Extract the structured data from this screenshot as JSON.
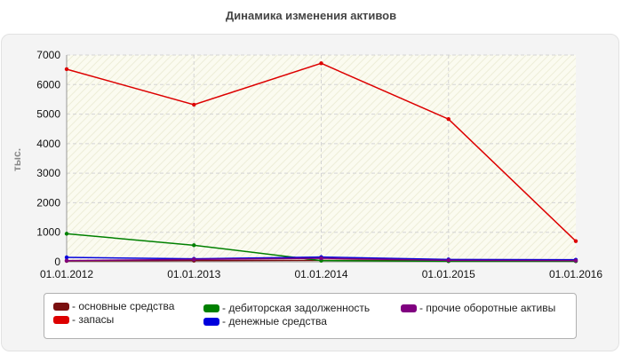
{
  "page": {
    "title": "Динамика изменения активов"
  },
  "chart_data": {
    "type": "line",
    "title": "Динамика изменения активов",
    "xlabel": "",
    "ylabel": "тыс.",
    "categories": [
      "01.01.2012",
      "01.01.2013",
      "01.01.2014",
      "01.01.2015",
      "01.01.2016"
    ],
    "ylim": [
      0,
      7000
    ],
    "yticks": [
      0,
      1000,
      2000,
      3000,
      4000,
      5000,
      6000,
      7000
    ],
    "grid": true,
    "legend_position": "bottom",
    "series": [
      {
        "name": "- основные средства",
        "color": "#7a1010",
        "values": [
          30,
          40,
          50,
          40,
          30
        ]
      },
      {
        "name": "- запасы",
        "color": "#dd0000",
        "values": [
          6520,
          5320,
          6720,
          4830,
          700
        ]
      },
      {
        "name": "- дебиторская задолженность",
        "color": "#008000",
        "values": [
          950,
          560,
          40,
          20,
          20
        ]
      },
      {
        "name": "- денежные средства",
        "color": "#0000dd",
        "values": [
          150,
          100,
          160,
          80,
          70
        ]
      },
      {
        "name": "- прочие оборотные активы",
        "color": "#800080",
        "values": [
          40,
          80,
          120,
          50,
          40
        ]
      }
    ]
  }
}
